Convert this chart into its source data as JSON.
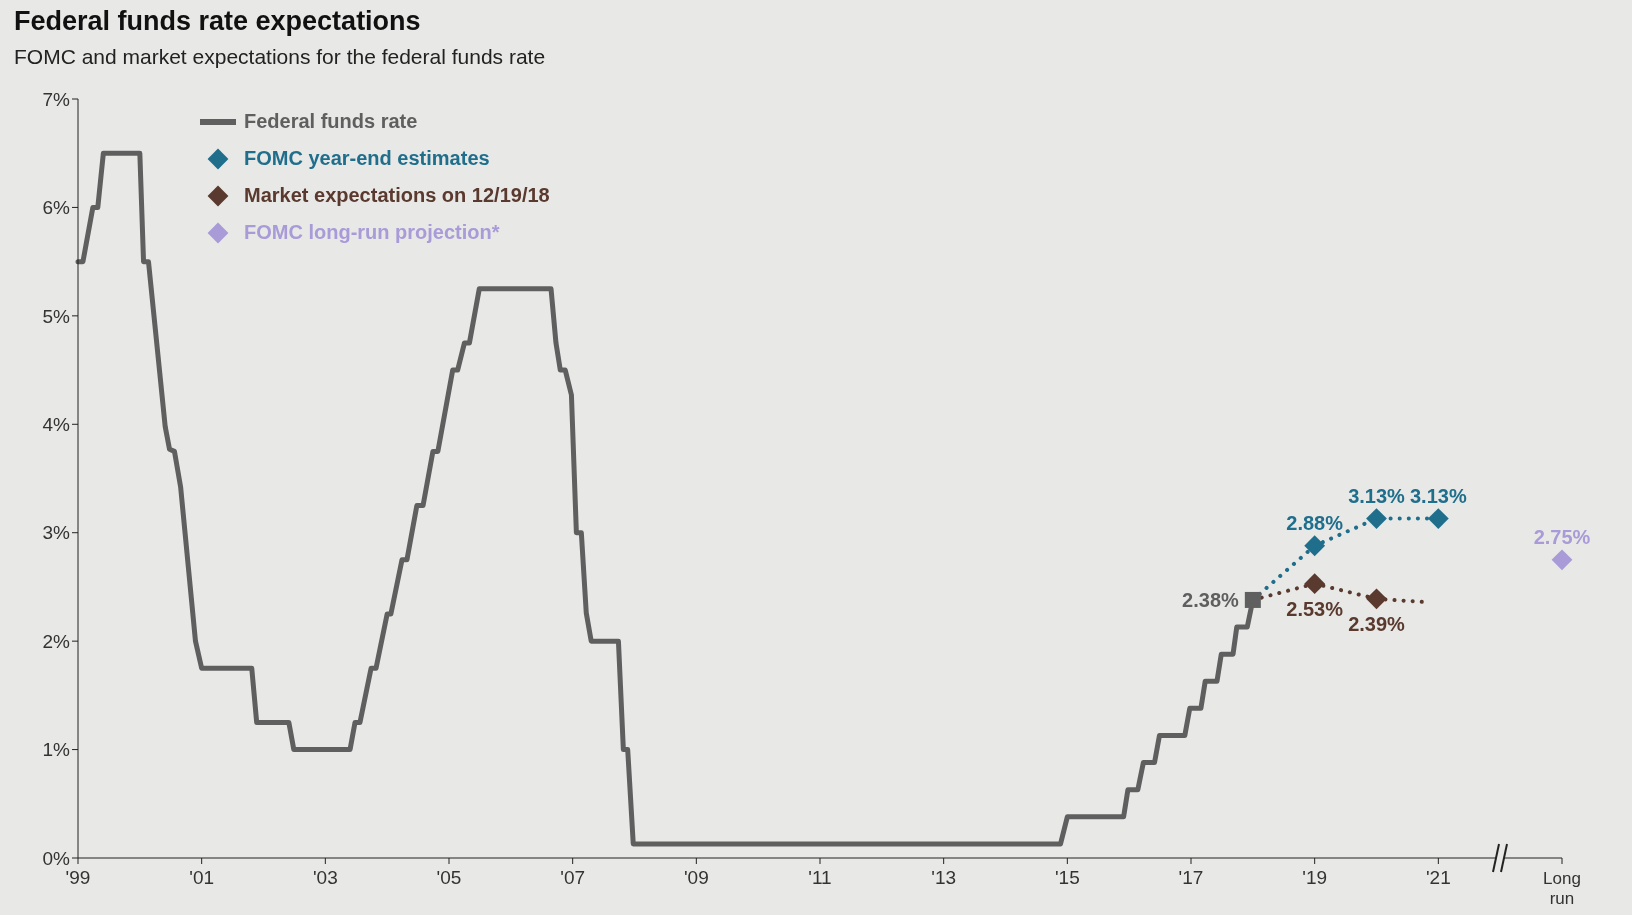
{
  "chart_data": {
    "type": "line",
    "title": "Federal funds rate expectations",
    "subtitle": "FOMC and market expectations for the federal funds rate",
    "xlim": [
      1999,
      2023
    ],
    "xticks": [
      {
        "value": 1999,
        "label": "'99"
      },
      {
        "value": 2001,
        "label": "'01"
      },
      {
        "value": 2003,
        "label": "'03"
      },
      {
        "value": 2005,
        "label": "'05"
      },
      {
        "value": 2007,
        "label": "'07"
      },
      {
        "value": 2009,
        "label": "'09"
      },
      {
        "value": 2011,
        "label": "'11"
      },
      {
        "value": 2013,
        "label": "'13"
      },
      {
        "value": 2015,
        "label": "'15"
      },
      {
        "value": 2017,
        "label": "'17"
      },
      {
        "value": 2019,
        "label": "'19"
      },
      {
        "value": 2021,
        "label": "'21"
      },
      {
        "value": 2023,
        "label": "Long run"
      }
    ],
    "ylim": [
      0,
      7
    ],
    "yticks": [
      {
        "value": 0,
        "label": "0%"
      },
      {
        "value": 1,
        "label": "1%"
      },
      {
        "value": 2,
        "label": "2%"
      },
      {
        "value": 3,
        "label": "3%"
      },
      {
        "value": 4,
        "label": "4%"
      },
      {
        "value": 5,
        "label": "5%"
      },
      {
        "value": 6,
        "label": "6%"
      },
      {
        "value": 7,
        "label": "7%"
      }
    ],
    "legend": "top left",
    "grid": false,
    "series": [
      {
        "name": "Federal funds rate",
        "color": "#5f5f5f",
        "line_style": "solid",
        "x": [
          1999.0,
          1999.08,
          1999.24,
          1999.32,
          1999.41,
          2000.0,
          2000.06,
          2000.14,
          2000.41,
          2000.48,
          2000.56,
          2000.66,
          2000.9,
          2001.0,
          2001.81,
          2001.89,
          2002.41,
          2002.49,
          2003.4,
          2003.48,
          2003.56,
          2003.74,
          2003.82,
          2004.0,
          2004.06,
          2004.24,
          2004.32,
          2004.48,
          2004.58,
          2004.74,
          2004.82,
          2005.06,
          2005.14,
          2005.25,
          2005.33,
          2005.49,
          2006.65,
          2006.73,
          2006.8,
          2006.88,
          2006.98,
          2007.06,
          2007.14,
          2007.22,
          2007.3,
          2007.74,
          2007.82,
          2007.89,
          2007.98,
          2014.89,
          2015.0,
          2015.91,
          2015.98,
          2016.14,
          2016.23,
          2016.41,
          2016.49,
          2016.9,
          2016.98,
          2017.16,
          2017.23,
          2017.42,
          2017.49,
          2017.68,
          2017.74,
          2017.91,
          2018.0
        ],
        "values": [
          5.5,
          5.5,
          6.0,
          6.0,
          6.5,
          6.5,
          5.5,
          5.5,
          3.98,
          3.77,
          3.75,
          3.42,
          2.0,
          1.75,
          1.75,
          1.25,
          1.25,
          1.0,
          1.0,
          1.25,
          1.25,
          1.75,
          1.75,
          2.25,
          2.25,
          2.75,
          2.75,
          3.25,
          3.25,
          3.75,
          3.75,
          4.5,
          4.5,
          4.75,
          4.75,
          5.25,
          5.25,
          4.75,
          4.5,
          4.5,
          4.27,
          3.0,
          3.0,
          2.26,
          2.0,
          2.0,
          1.0,
          1.0,
          0.13,
          0.13,
          0.38,
          0.38,
          0.63,
          0.63,
          0.88,
          0.88,
          1.13,
          1.13,
          1.38,
          1.38,
          1.63,
          1.63,
          1.88,
          1.88,
          2.13,
          2.13,
          2.38
        ],
        "value_labels": [
          null,
          null,
          null,
          null,
          null,
          null,
          null,
          null,
          null,
          null,
          null,
          null,
          null,
          null,
          null,
          null,
          null,
          null,
          null,
          null,
          null,
          null,
          null,
          null,
          null,
          null,
          null,
          null,
          null,
          null,
          null,
          null,
          null,
          null,
          null,
          null,
          null,
          null,
          null,
          null,
          null,
          null,
          null,
          null,
          null,
          null,
          null,
          null,
          null,
          null,
          null,
          null,
          null,
          null,
          null,
          null,
          null,
          null,
          null,
          null,
          null,
          null,
          null,
          null,
          null,
          null,
          "2.38%"
        ]
      },
      {
        "name": "FOMC year-end estimates",
        "color": "#1f6e8c",
        "marker": "diamond",
        "line_style": "dotted",
        "x": [
          2018,
          2019,
          2020,
          2021
        ],
        "values": [
          2.38,
          2.88,
          3.13,
          3.13
        ],
        "value_labels": [
          null,
          "2.88%",
          "3.13%",
          "3.13%"
        ]
      },
      {
        "name": "Market expectations on 12/19/18",
        "color": "#5a3a2e",
        "marker": "diamond",
        "line_style": "dotted",
        "x": [
          2018,
          2019,
          2020,
          2020.8
        ],
        "values": [
          2.38,
          2.53,
          2.39,
          2.36
        ],
        "value_labels": [
          null,
          "2.53%",
          "2.39%",
          null
        ]
      },
      {
        "name": "FOMC long-run projection*",
        "type": "scatter",
        "color": "#a99ad8",
        "marker": "diamond",
        "x": [
          2023
        ],
        "values": [
          2.75
        ],
        "value_labels": [
          "2.75%"
        ]
      }
    ]
  }
}
